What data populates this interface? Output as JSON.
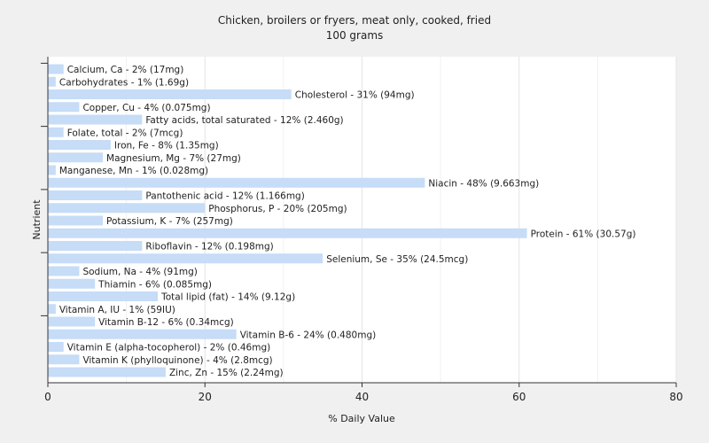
{
  "chart_data": {
    "type": "bar",
    "orientation": "horizontal",
    "title": "Chicken, broilers or fryers, meat only, cooked, fried",
    "subtitle": "100 grams",
    "xlabel": "% Daily Value",
    "ylabel": "Nutrient",
    "xlim": [
      0,
      80
    ],
    "xticks": [
      0,
      20,
      40,
      60,
      80
    ],
    "grid": true,
    "bar_color": "#c6dcf7",
    "categories": [
      "Calcium, Ca",
      "Carbohydrates",
      "Cholesterol",
      "Copper, Cu",
      "Fatty acids, total saturated",
      "Folate, total",
      "Iron, Fe",
      "Magnesium, Mg",
      "Manganese, Mn",
      "Niacin",
      "Pantothenic acid",
      "Phosphorus, P",
      "Potassium, K",
      "Protein",
      "Riboflavin",
      "Selenium, Se",
      "Sodium, Na",
      "Thiamin",
      "Total lipid (fat)",
      "Vitamin A, IU",
      "Vitamin B-12",
      "Vitamin B-6",
      "Vitamin E (alpha-tocopherol)",
      "Vitamin K (phylloquinone)",
      "Zinc, Zn"
    ],
    "values": [
      2,
      1,
      31,
      4,
      12,
      2,
      8,
      7,
      1,
      48,
      12,
      20,
      7,
      61,
      12,
      35,
      4,
      6,
      14,
      1,
      6,
      24,
      2,
      4,
      15
    ],
    "amounts": [
      "17mg",
      "1.69g",
      "94mg",
      "0.075mg",
      "2.460g",
      "7mcg",
      "1.35mg",
      "27mg",
      "0.028mg",
      "9.663mg",
      "1.166mg",
      "205mg",
      "257mg",
      "30.57g",
      "0.198mg",
      "24.5mcg",
      "91mg",
      "0.085mg",
      "9.12g",
      "59IU",
      "0.34mcg",
      "0.480mg",
      "0.46mg",
      "2.8mcg",
      "2.24mg"
    ],
    "labels": [
      "Calcium, Ca - 2% (17mg)",
      "Carbohydrates - 1% (1.69g)",
      "Cholesterol - 31% (94mg)",
      "Copper, Cu - 4% (0.075mg)",
      "Fatty acids, total saturated - 12% (2.460g)",
      "Folate, total - 2% (7mcg)",
      "Iron, Fe - 8% (1.35mg)",
      "Magnesium, Mg - 7% (27mg)",
      "Manganese, Mn - 1% (0.028mg)",
      "Niacin - 48% (9.663mg)",
      "Pantothenic acid - 12% (1.166mg)",
      "Phosphorus, P - 20% (205mg)",
      "Potassium, K - 7% (257mg)",
      "Protein - 61% (30.57g)",
      "Riboflavin - 12% (0.198mg)",
      "Selenium, Se - 35% (24.5mcg)",
      "Sodium, Na - 4% (91mg)",
      "Thiamin - 6% (0.085mg)",
      "Total lipid (fat) - 14% (9.12g)",
      "Vitamin A, IU - 1% (59IU)",
      "Vitamin B-12 - 6% (0.34mcg)",
      "Vitamin B-6 - 24% (0.480mg)",
      "Vitamin E (alpha-tocopherol) - 2% (0.46mg)",
      "Vitamin K (phylloquinone) - 4% (2.8mcg)",
      "Zinc, Zn - 15% (2.24mg)"
    ]
  }
}
